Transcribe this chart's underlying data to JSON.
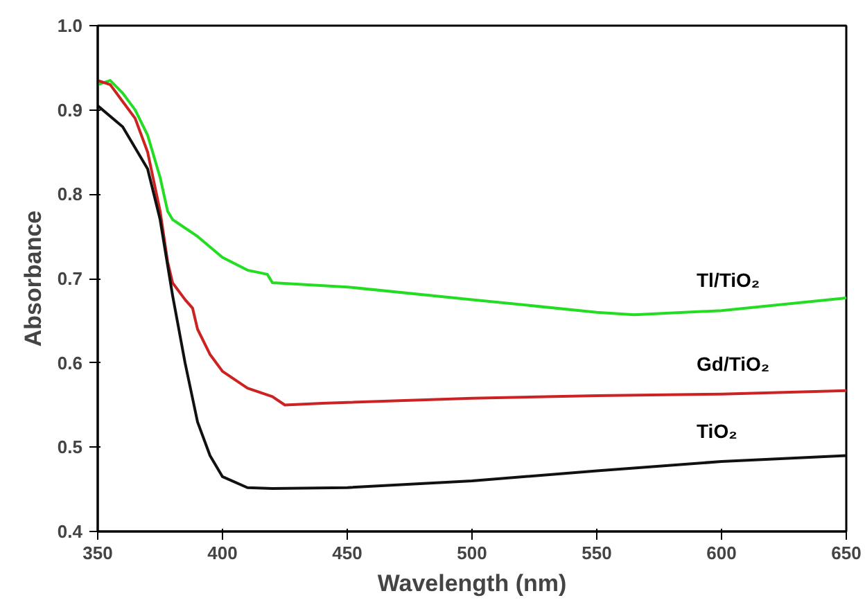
{
  "chart_data": {
    "type": "line",
    "xlabel": "Wavelength (nm)",
    "ylabel": "Absorbance",
    "xlim": [
      350,
      650
    ],
    "ylim": [
      0.4,
      1.0
    ],
    "xticks": [
      350,
      400,
      450,
      500,
      550,
      600,
      650
    ],
    "yticks": [
      0.4,
      0.5,
      0.6,
      0.7,
      0.8,
      0.9,
      {
        "value": 1,
        "label": "1.0"
      }
    ],
    "series": [
      {
        "name": "Tl/TiO₂",
        "color": "#22dd22",
        "x": [
          350,
          355,
          360,
          365,
          370,
          375,
          378,
          380,
          390,
          400,
          410,
          418,
          420,
          450,
          500,
          550,
          565,
          600,
          650
        ],
        "values": [
          0.93,
          0.935,
          0.92,
          0.9,
          0.87,
          0.82,
          0.78,
          0.77,
          0.75,
          0.725,
          0.71,
          0.705,
          0.695,
          0.69,
          0.675,
          0.66,
          0.657,
          0.662,
          0.677
        ]
      },
      {
        "name": "Gd/TiO₂",
        "color": "#cc2222",
        "x": [
          350,
          355,
          360,
          365,
          370,
          375,
          378,
          380,
          385,
          388,
          390,
          395,
          400,
          410,
          420,
          425,
          440,
          450,
          500,
          550,
          600,
          650
        ],
        "values": [
          0.935,
          0.93,
          0.91,
          0.89,
          0.85,
          0.78,
          0.72,
          0.695,
          0.675,
          0.665,
          0.64,
          0.61,
          0.59,
          0.57,
          0.56,
          0.55,
          0.552,
          0.553,
          0.558,
          0.561,
          0.563,
          0.567
        ]
      },
      {
        "name": "TiO₂",
        "color": "#111111",
        "x": [
          350,
          360,
          370,
          375,
          380,
          385,
          390,
          395,
          400,
          410,
          420,
          450,
          500,
          550,
          600,
          650
        ],
        "values": [
          0.905,
          0.88,
          0.83,
          0.77,
          0.68,
          0.6,
          0.53,
          0.49,
          0.465,
          0.452,
          0.451,
          0.452,
          0.46,
          0.472,
          0.483,
          0.49
        ]
      }
    ]
  }
}
